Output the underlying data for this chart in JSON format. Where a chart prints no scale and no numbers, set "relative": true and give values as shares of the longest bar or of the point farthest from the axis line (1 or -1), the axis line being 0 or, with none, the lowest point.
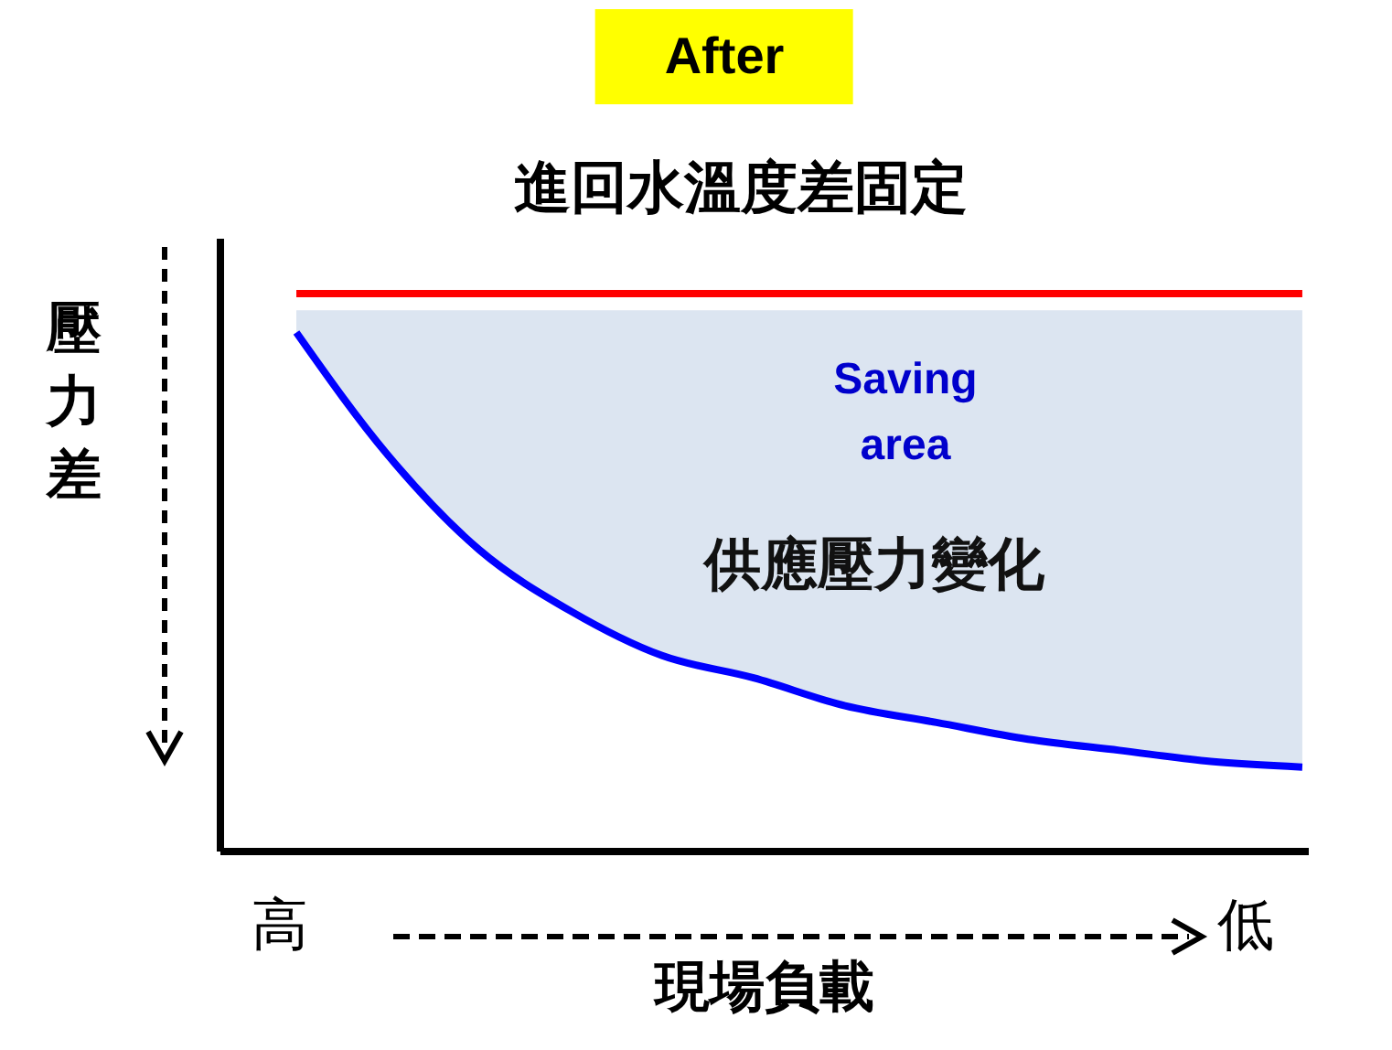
{
  "chart_data": {
    "type": "line",
    "relative": true,
    "title": "After",
    "subtitle": "進回水溫度差固定",
    "xlabel": "現場負載",
    "ylabel": "壓力差",
    "categories": [
      null,
      null,
      null,
      null,
      null,
      null,
      null,
      null,
      null,
      null,
      null,
      null
    ],
    "series": [
      {
        "color": "#ff0000",
        "values": [
          1,
          1,
          1,
          1,
          1,
          1,
          1,
          1,
          1,
          1,
          1,
          1
        ]
      },
      {
        "color": "#0000ff",
        "values": [
          0.93,
          0.71,
          0.54,
          0.43,
          0.35,
          0.31,
          0.26,
          0.23,
          0.2,
          0.18,
          0.16,
          0.15
        ],
        "lower": [
          0.93,
          0.71,
          0.54,
          0.43,
          0.35,
          0.31,
          0.26,
          0.23,
          0.2,
          0.18,
          0.16,
          0.15
        ],
        "upper": [
          0.97,
          0.97,
          0.97,
          0.97,
          0.97,
          0.97,
          0.97,
          0.97,
          0.97,
          0.97,
          0.97,
          0.97
        ]
      }
    ],
    "annotations": [
      "Saving area",
      "供應壓力變化",
      "高",
      "低"
    ],
    "grid": false
  }
}
